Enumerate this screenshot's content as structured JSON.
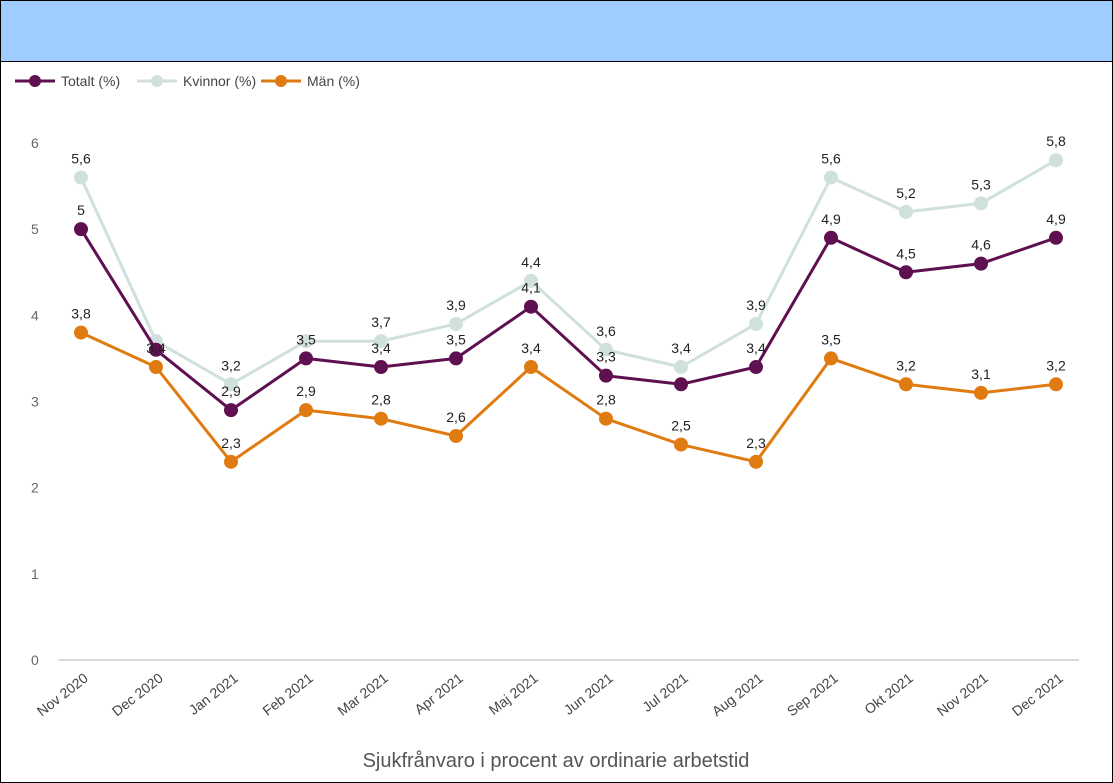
{
  "colors": {
    "header": "#9fcdff",
    "totalt": "#5e1050",
    "kvinnor": "#cfe0dd",
    "man": "#e07b11",
    "axis": "#cccccc"
  },
  "chart_data": {
    "type": "line",
    "title": "",
    "xlabel": "Sjukfrånvaro i procent av ordinarie arbetstid",
    "ylabel": "",
    "ylim": [
      0,
      6
    ],
    "yticks": [
      "0",
      "1",
      "2",
      "3",
      "4",
      "5",
      "6"
    ],
    "grid": false,
    "legend_position": "top-left",
    "categories": [
      "Nov 2020",
      "Dec 2020",
      "Jan 2021",
      "Feb 2021",
      "Mar 2021",
      "Apr 2021",
      "Maj 2021",
      "Jun 2021",
      "Jul 2021",
      "Aug 2021",
      "Sep 2021",
      "Okt 2021",
      "Nov 2021",
      "Dec 2021"
    ],
    "series": [
      {
        "name": "Totalt (%)",
        "color": "#5e1050",
        "values": [
          5,
          3.6,
          2.9,
          3.5,
          3.4,
          3.5,
          4.1,
          3.3,
          3.2,
          3.4,
          4.9,
          4.5,
          4.6,
          4.9
        ],
        "labels": [
          "5",
          "",
          "2,9",
          "3,5",
          "3,4",
          "3,5",
          "4,1",
          "3,3",
          "",
          "3,4",
          "4,9",
          "4,5",
          "4,6",
          "4,9"
        ]
      },
      {
        "name": "Kvinnor (%)",
        "color": "#cfe0dd",
        "values": [
          5.6,
          3.7,
          3.2,
          3.7,
          3.7,
          3.9,
          4.4,
          3.6,
          3.4,
          3.9,
          5.6,
          5.2,
          5.3,
          5.8
        ],
        "labels": [
          "5,6",
          "",
          "3,2",
          "",
          "3,7",
          "3,9",
          "4,4",
          "3,6",
          "3,4",
          "3,9",
          "5,6",
          "5,2",
          "5,3",
          "5,8"
        ]
      },
      {
        "name": "Män (%)",
        "color": "#e07b11",
        "values": [
          3.8,
          3.4,
          2.3,
          2.9,
          2.8,
          2.6,
          3.4,
          2.8,
          2.5,
          2.3,
          3.5,
          3.2,
          3.1,
          3.2
        ],
        "labels": [
          "3,8",
          "3,4",
          "2,3",
          "2,9",
          "2,8",
          "2,6",
          "3,4",
          "2,8",
          "2,5",
          "2,3",
          "3,5",
          "3,2",
          "3,1",
          "3,2"
        ]
      }
    ]
  }
}
